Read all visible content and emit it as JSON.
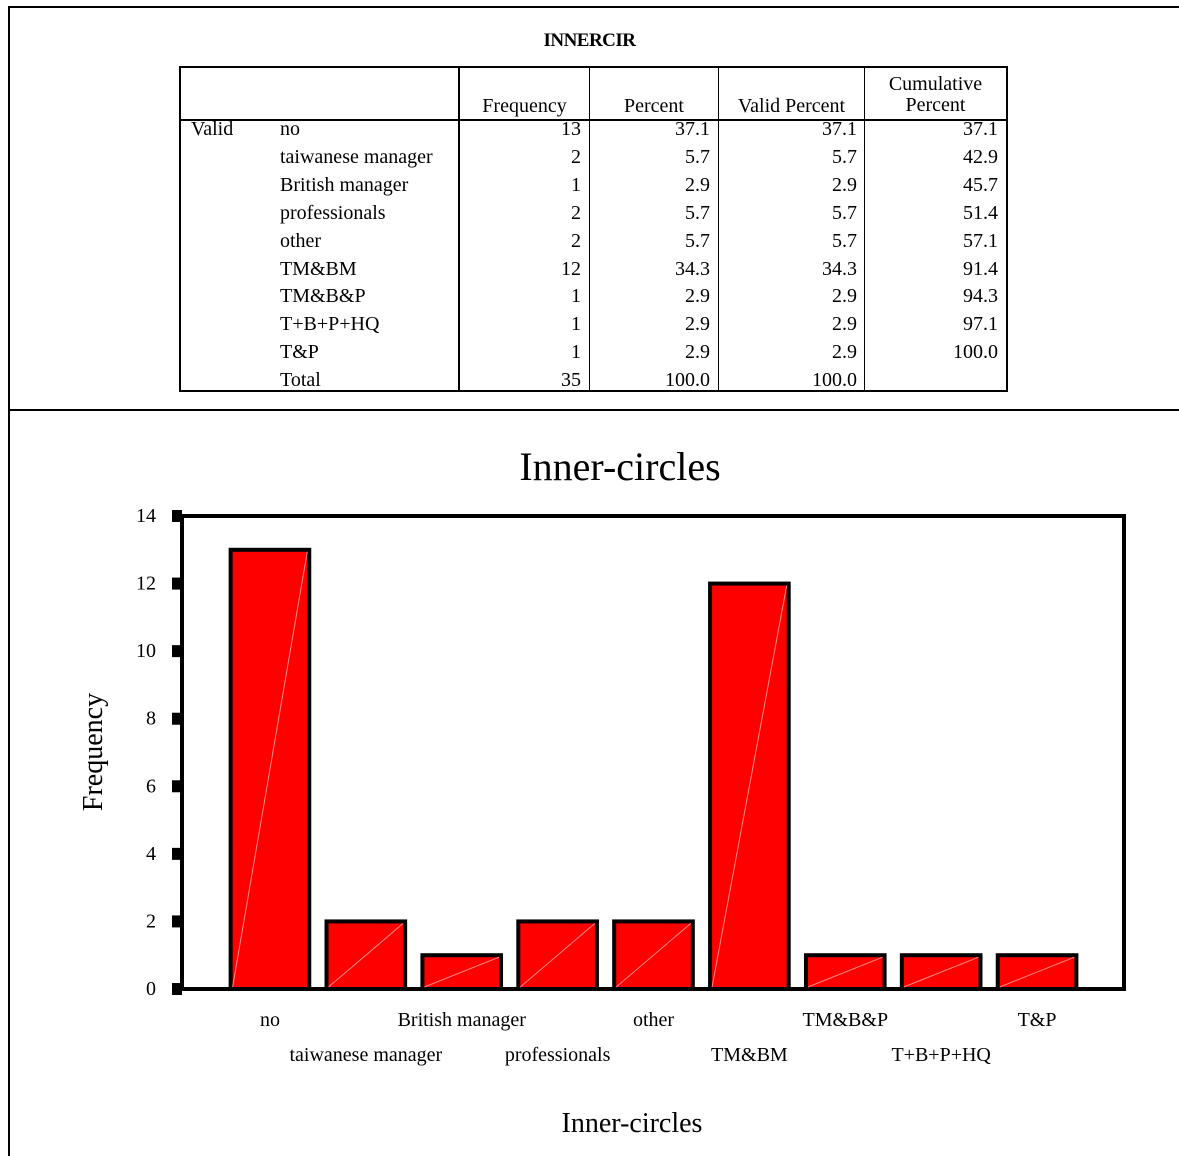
{
  "table": {
    "title": "INNERCIR",
    "columns": [
      "Frequency",
      "Percent",
      "Valid Percent",
      "Cumulative Percent"
    ],
    "cumulative_line1": "Cumulative",
    "cumulative_line2": "Percent",
    "group_label": "Valid",
    "rows": [
      {
        "label": "no",
        "frequency": "13",
        "percent": "37.1",
        "valid_percent": "37.1",
        "cumulative": "37.1"
      },
      {
        "label": "taiwanese manager",
        "frequency": "2",
        "percent": "5.7",
        "valid_percent": "5.7",
        "cumulative": "42.9"
      },
      {
        "label": "British manager",
        "frequency": "1",
        "percent": "2.9",
        "valid_percent": "2.9",
        "cumulative": "45.7"
      },
      {
        "label": "professionals",
        "frequency": "2",
        "percent": "5.7",
        "valid_percent": "5.7",
        "cumulative": "51.4"
      },
      {
        "label": "other",
        "frequency": "2",
        "percent": "5.7",
        "valid_percent": "5.7",
        "cumulative": "57.1"
      },
      {
        "label": "TM&BM",
        "frequency": "12",
        "percent": "34.3",
        "valid_percent": "34.3",
        "cumulative": "91.4"
      },
      {
        "label": "TM&B&P",
        "frequency": "1",
        "percent": "2.9",
        "valid_percent": "2.9",
        "cumulative": "94.3"
      },
      {
        "label": "T+B+P+HQ",
        "frequency": "1",
        "percent": "2.9",
        "valid_percent": "2.9",
        "cumulative": "97.1"
      },
      {
        "label": "T&P",
        "frequency": "1",
        "percent": "2.9",
        "valid_percent": "2.9",
        "cumulative": "100.0"
      },
      {
        "label": "Total",
        "frequency": "35",
        "percent": "100.0",
        "valid_percent": "100.0",
        "cumulative": ""
      }
    ]
  },
  "chart_data": {
    "type": "bar",
    "title": "Inner-circles",
    "xlabel": "Inner-circles",
    "ylabel": "Frequency",
    "categories": [
      "no",
      "taiwanese manager",
      "British manager",
      "professionals",
      "other",
      "TM&BM",
      "TM&B&P",
      "T+B+P+HQ",
      "T&P"
    ],
    "values": [
      13,
      2,
      1,
      2,
      2,
      12,
      1,
      1,
      1
    ],
    "ylim": [
      0,
      14
    ],
    "yticks": [
      0,
      2,
      4,
      6,
      8,
      10,
      12,
      14
    ],
    "grid": false,
    "bar_color": "#ff0000"
  }
}
